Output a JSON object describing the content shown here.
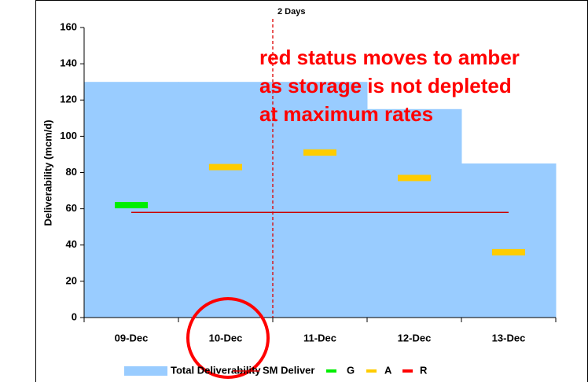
{
  "chart_data": {
    "type": "combo",
    "y_label": "Deliverability (mcm/d)",
    "categories": [
      "09-Dec",
      "10-Dec",
      "11-Dec",
      "12-Dec",
      "13-Dec"
    ],
    "series": [
      {
        "name": "Total Deliverability",
        "style": "area",
        "color": "#99ccff",
        "values": [
          130,
          130,
          130,
          115,
          85
        ]
      },
      {
        "name": "SM Deliver",
        "style": "line",
        "color": "#cc0000",
        "values": [
          58,
          58,
          58,
          58,
          58
        ]
      },
      {
        "name": "G",
        "style": "marker",
        "color": "#00ee00",
        "values": [
          62,
          null,
          null,
          null,
          null
        ]
      },
      {
        "name": "A",
        "style": "marker",
        "color": "#ffcc00",
        "values": [
          null,
          83,
          91,
          77,
          36
        ]
      },
      {
        "name": "R",
        "style": "marker",
        "color": "#ff0000",
        "values": [
          null,
          null,
          null,
          null,
          null
        ]
      }
    ],
    "ylim": [
      0,
      160
    ],
    "yticks": [
      0,
      20,
      40,
      60,
      80,
      100,
      120,
      140,
      160
    ],
    "divider_label": "2 Days",
    "annotation": [
      "red status moves to amber",
      "as storage is not depleted",
      "at maximum rates"
    ],
    "annotation_color": "#ff0000"
  }
}
